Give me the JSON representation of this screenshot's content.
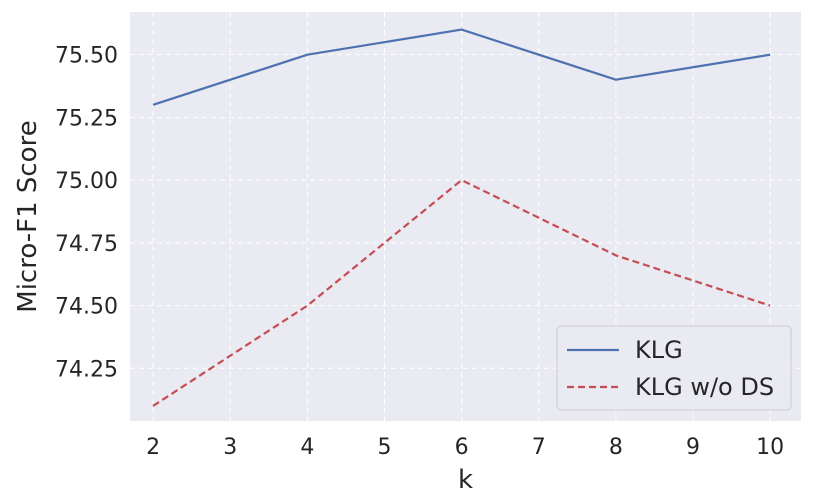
{
  "chart_data": {
    "type": "line",
    "title": "",
    "xlabel": "k",
    "ylabel": "Micro-F1 Score",
    "x": [
      2,
      4,
      6,
      8,
      10
    ],
    "xlim": [
      1.7,
      10.4
    ],
    "ylim": [
      74.04,
      75.67
    ],
    "xticks": [
      "2",
      "3",
      "4",
      "5",
      "6",
      "7",
      "8",
      "9",
      "10"
    ],
    "yticks": [
      "74.25",
      "74.50",
      "74.75",
      "75.00",
      "75.25",
      "75.50"
    ],
    "grid": true,
    "legend_position": "lower-right",
    "series": [
      {
        "name": "KLG",
        "values": [
          75.3,
          75.5,
          75.6,
          75.4,
          75.5
        ],
        "color": "#4c72b0",
        "style": "solid"
      },
      {
        "name": "KLG w/o DS",
        "values": [
          74.1,
          74.5,
          75.0,
          74.7,
          74.5
        ],
        "color": "#c44e52",
        "style": "dashed"
      }
    ]
  }
}
